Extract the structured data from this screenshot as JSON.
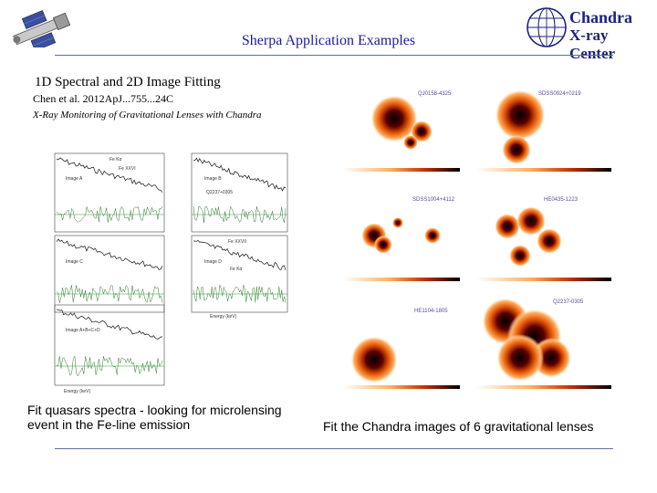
{
  "header": {
    "title": "Sherpa Application Examples",
    "logo_line1": "Chandra",
    "logo_line2": "X-ray Center"
  },
  "section": {
    "heading": "1D Spectral and 2D Image Fitting",
    "citation": "Chen et al. 2012ApJ...755...24C",
    "paper_title": "X-Ray Monitoring of Gravitational Lenses with Chandra"
  },
  "spectra": {
    "labels": [
      "Image A",
      "Image B",
      "Image C",
      "Image D",
      "Image A+B+C+D"
    ],
    "object": "Q2237+0305",
    "lines": [
      "Fe Kα",
      "Fe XXVI",
      "Fe XXVII",
      "Fe Kα"
    ],
    "xlabel": "Energy (keV)",
    "caption": "Fit quasars spectra - looking for microlensing event in the  Fe-line emission"
  },
  "images": {
    "lenses": [
      "QJ0158-4325",
      "SDSS0924+0219",
      "SDSS1004+4112",
      "HE0435-1223",
      "HE1104-1805",
      "Q2237-0305"
    ],
    "caption": "Fit the Chandra images of 6 gravitational lenses"
  },
  "colors": {
    "title": "#1a1a9c",
    "rule": "#5a6ea0",
    "logo": "#1a237e",
    "lens_hot": "#000000",
    "lens_warm": "#ff8c00"
  }
}
